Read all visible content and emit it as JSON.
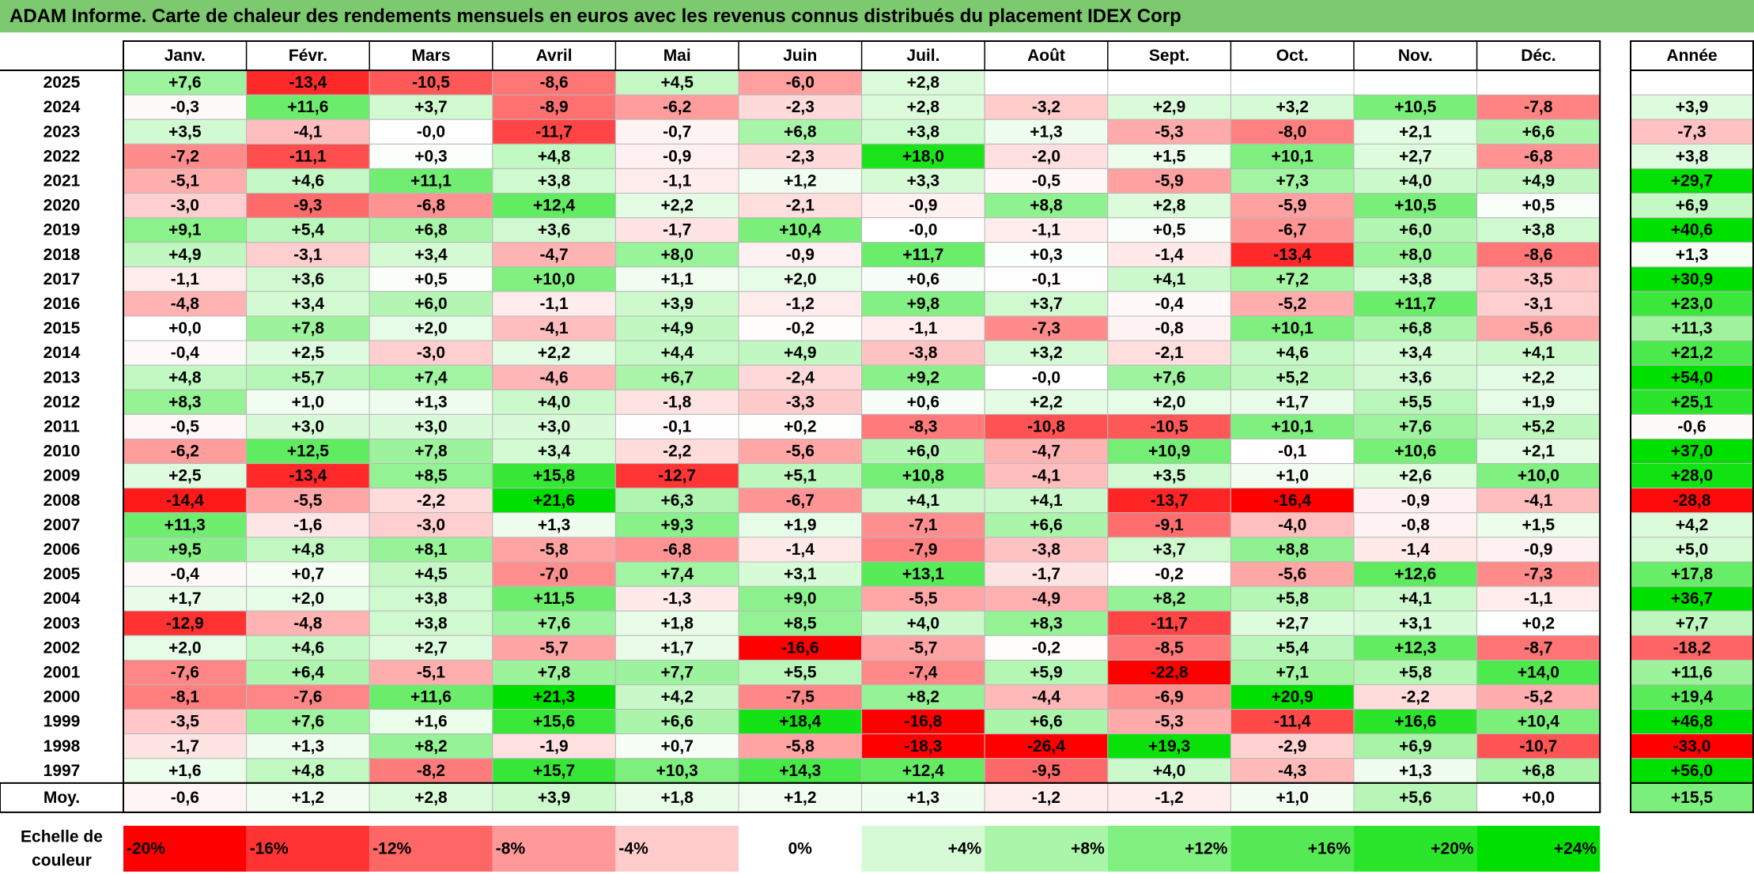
{
  "title": "ADAM Informe. Carte de chaleur des rendements mensuels en euros avec les revenus connus distribués du placement IDEX Corp",
  "chart_data": {
    "type": "heatmap",
    "columns": [
      "Janv.",
      "Févr.",
      "Mars",
      "Avril",
      "Mai",
      "Juin",
      "Juil.",
      "Août",
      "Sept.",
      "Oct.",
      "Nov.",
      "Déc."
    ],
    "year_column_label": "Année",
    "rows": [
      {
        "label": "2025",
        "values": [
          "+7,6",
          "-13,4",
          "-10,5",
          "-8,6",
          "+4,5",
          "-6,0",
          "+2,8",
          "",
          "",
          "",
          "",
          ""
        ],
        "year": ""
      },
      {
        "label": "2024",
        "values": [
          "-0,3",
          "+11,6",
          "+3,7",
          "-8,9",
          "-6,2",
          "-2,3",
          "+2,8",
          "-3,2",
          "+2,9",
          "+3,2",
          "+10,5",
          "-7,8"
        ],
        "year": "+3,9"
      },
      {
        "label": "2023",
        "values": [
          "+3,5",
          "-4,1",
          "-0,0",
          "-11,7",
          "-0,7",
          "+6,8",
          "+3,8",
          "+1,3",
          "-5,3",
          "-8,0",
          "+2,1",
          "+6,6"
        ],
        "year": "-7,3"
      },
      {
        "label": "2022",
        "values": [
          "-7,2",
          "-11,1",
          "+0,3",
          "+4,8",
          "-0,9",
          "-2,3",
          "+18,0",
          "-2,0",
          "+1,5",
          "+10,1",
          "+2,7",
          "-6,8"
        ],
        "year": "+3,8"
      },
      {
        "label": "2021",
        "values": [
          "-5,1",
          "+4,6",
          "+11,1",
          "+3,8",
          "-1,1",
          "+1,2",
          "+3,3",
          "-0,5",
          "-5,9",
          "+7,3",
          "+4,0",
          "+4,9"
        ],
        "year": "+29,7"
      },
      {
        "label": "2020",
        "values": [
          "-3,0",
          "-9,3",
          "-6,8",
          "+12,4",
          "+2,2",
          "-2,1",
          "-0,9",
          "+8,8",
          "+2,8",
          "-5,9",
          "+10,5",
          "+0,5"
        ],
        "year": "+6,9"
      },
      {
        "label": "2019",
        "values": [
          "+9,1",
          "+5,4",
          "+6,8",
          "+3,6",
          "-1,7",
          "+10,4",
          "-0,0",
          "-1,1",
          "+0,5",
          "-6,7",
          "+6,0",
          "+3,8"
        ],
        "year": "+40,6"
      },
      {
        "label": "2018",
        "values": [
          "+4,9",
          "-3,1",
          "+3,4",
          "-4,7",
          "+8,0",
          "-0,9",
          "+11,7",
          "+0,3",
          "-1,4",
          "-13,4",
          "+8,0",
          "-8,6"
        ],
        "year": "+1,3"
      },
      {
        "label": "2017",
        "values": [
          "-1,1",
          "+3,6",
          "+0,5",
          "+10,0",
          "+1,1",
          "+2,0",
          "+0,6",
          "-0,1",
          "+4,1",
          "+7,2",
          "+3,8",
          "-3,5"
        ],
        "year": "+30,9"
      },
      {
        "label": "2016",
        "values": [
          "-4,8",
          "+3,4",
          "+6,0",
          "-1,1",
          "+3,9",
          "-1,2",
          "+9,8",
          "+3,7",
          "-0,4",
          "-5,2",
          "+11,7",
          "-3,1"
        ],
        "year": "+23,0"
      },
      {
        "label": "2015",
        "values": [
          "+0,0",
          "+7,8",
          "+2,0",
          "-4,1",
          "+4,9",
          "-0,2",
          "-1,1",
          "-7,3",
          "-0,8",
          "+10,1",
          "+6,8",
          "-5,6"
        ],
        "year": "+11,3"
      },
      {
        "label": "2014",
        "values": [
          "-0,4",
          "+2,5",
          "-3,0",
          "+2,2",
          "+4,4",
          "+4,9",
          "-3,8",
          "+3,2",
          "-2,1",
          "+4,6",
          "+3,4",
          "+4,1"
        ],
        "year": "+21,2"
      },
      {
        "label": "2013",
        "values": [
          "+4,8",
          "+5,7",
          "+7,4",
          "-4,6",
          "+6,7",
          "-2,4",
          "+9,2",
          "-0,0",
          "+7,6",
          "+5,2",
          "+3,6",
          "+2,2"
        ],
        "year": "+54,0"
      },
      {
        "label": "2012",
        "values": [
          "+8,3",
          "+1,0",
          "+1,3",
          "+4,0",
          "-1,8",
          "-3,3",
          "+0,6",
          "+2,2",
          "+2,0",
          "+1,7",
          "+5,5",
          "+1,9"
        ],
        "year": "+25,1"
      },
      {
        "label": "2011",
        "values": [
          "-0,5",
          "+3,0",
          "+3,0",
          "+3,0",
          "-0,1",
          "+0,2",
          "-8,3",
          "-10,8",
          "-10,5",
          "+10,1",
          "+7,6",
          "+5,2"
        ],
        "year": "-0,6"
      },
      {
        "label": "2010",
        "values": [
          "-6,2",
          "+12,5",
          "+7,8",
          "+3,4",
          "-2,2",
          "-5,6",
          "+6,0",
          "-4,7",
          "+10,9",
          "-0,1",
          "+10,6",
          "+2,1"
        ],
        "year": "+37,0"
      },
      {
        "label": "2009",
        "values": [
          "+2,5",
          "-13,4",
          "+8,5",
          "+15,8",
          "-12,7",
          "+5,1",
          "+10,8",
          "-4,1",
          "+3,5",
          "+1,0",
          "+2,6",
          "+10,0"
        ],
        "year": "+28,0"
      },
      {
        "label": "2008",
        "values": [
          "-14,4",
          "-5,5",
          "-2,2",
          "+21,6",
          "+6,3",
          "-6,7",
          "+4,1",
          "+4,1",
          "-13,7",
          "-16,4",
          "-0,9",
          "-4,1"
        ],
        "year": "-28,8"
      },
      {
        "label": "2007",
        "values": [
          "+11,3",
          "-1,6",
          "-3,0",
          "+1,3",
          "+9,3",
          "+1,9",
          "-7,1",
          "+6,6",
          "-9,1",
          "-4,0",
          "-0,8",
          "+1,5"
        ],
        "year": "+4,2"
      },
      {
        "label": "2006",
        "values": [
          "+9,5",
          "+4,8",
          "+8,1",
          "-5,8",
          "-6,8",
          "-1,4",
          "-7,9",
          "-3,8",
          "+3,7",
          "+8,8",
          "-1,4",
          "-0,9"
        ],
        "year": "+5,0"
      },
      {
        "label": "2005",
        "values": [
          "-0,4",
          "+0,7",
          "+4,5",
          "-7,0",
          "+7,4",
          "+3,1",
          "+13,1",
          "-1,7",
          "-0,2",
          "-5,6",
          "+12,6",
          "-7,3"
        ],
        "year": "+17,8"
      },
      {
        "label": "2004",
        "values": [
          "+1,7",
          "+2,0",
          "+3,8",
          "+11,5",
          "-1,3",
          "+9,0",
          "-5,5",
          "-4,9",
          "+8,2",
          "+5,8",
          "+4,1",
          "-1,1"
        ],
        "year": "+36,7"
      },
      {
        "label": "2003",
        "values": [
          "-12,9",
          "-4,8",
          "+3,8",
          "+7,6",
          "+1,8",
          "+8,5",
          "+4,0",
          "+8,3",
          "-11,7",
          "+2,7",
          "+3,1",
          "+0,2"
        ],
        "year": "+7,7"
      },
      {
        "label": "2002",
        "values": [
          "+2,0",
          "+4,6",
          "+2,7",
          "-5,7",
          "+1,7",
          "-16,6",
          "-5,7",
          "-0,2",
          "-8,5",
          "+5,4",
          "+12,3",
          "-8,7"
        ],
        "year": "-18,2"
      },
      {
        "label": "2001",
        "values": [
          "-7,6",
          "+6,4",
          "-5,1",
          "+7,8",
          "+7,7",
          "+5,5",
          "-7,4",
          "+5,9",
          "-22,8",
          "+7,1",
          "+5,8",
          "+14,0"
        ],
        "year": "+11,6"
      },
      {
        "label": "2000",
        "values": [
          "-8,1",
          "-7,6",
          "+11,6",
          "+21,3",
          "+4,2",
          "-7,5",
          "+8,2",
          "-4,4",
          "-6,9",
          "+20,9",
          "-2,2",
          "-5,2"
        ],
        "year": "+19,4"
      },
      {
        "label": "1999",
        "values": [
          "-3,5",
          "+7,6",
          "+1,6",
          "+15,6",
          "+6,6",
          "+18,4",
          "-16,8",
          "+6,6",
          "-5,3",
          "-11,4",
          "+16,6",
          "+10,4"
        ],
        "year": "+46,8"
      },
      {
        "label": "1998",
        "values": [
          "-1,7",
          "+1,3",
          "+8,2",
          "-1,9",
          "+0,7",
          "-5,8",
          "-18,3",
          "-26,4",
          "+19,3",
          "-2,9",
          "+6,9",
          "-10,7"
        ],
        "year": "-33,0"
      },
      {
        "label": "1997",
        "values": [
          "+1,6",
          "+4,8",
          "-8,2",
          "+15,7",
          "+10,3",
          "+14,3",
          "+12,4",
          "-9,5",
          "+4,0",
          "-4,3",
          "+1,3",
          "+6,8"
        ],
        "year": "+56,0"
      }
    ],
    "average_row": {
      "label": "Moy.",
      "values": [
        "-0,6",
        "+1,2",
        "+2,8",
        "+3,9",
        "+1,8",
        "+1,2",
        "+1,3",
        "-1,2",
        "-1,2",
        "+1,0",
        "+5,6",
        "+0,0"
      ],
      "year": "+15,5"
    },
    "color_scale": {
      "label": "Echelle de couleur",
      "stops": [
        {
          "label": "-20%",
          "value": -20
        },
        {
          "label": "-16%",
          "value": -16
        },
        {
          "label": "-12%",
          "value": -12
        },
        {
          "label": "-8%",
          "value": -8
        },
        {
          "label": "-4%",
          "value": -4
        },
        {
          "label": "0%",
          "value": 0
        },
        {
          "label": "+4%",
          "value": 4
        },
        {
          "label": "+8%",
          "value": 8
        },
        {
          "label": "+12%",
          "value": 12
        },
        {
          "label": "+16%",
          "value": 16
        },
        {
          "label": "+20%",
          "value": 20
        },
        {
          "label": "+24%",
          "value": 24
        }
      ]
    },
    "colors": {
      "negative_max": "#ff0000",
      "neutral": "#ffffff",
      "positive_max": "#00e000",
      "title_bar": "#7cc96f",
      "grid": "#b8b8b8"
    }
  }
}
